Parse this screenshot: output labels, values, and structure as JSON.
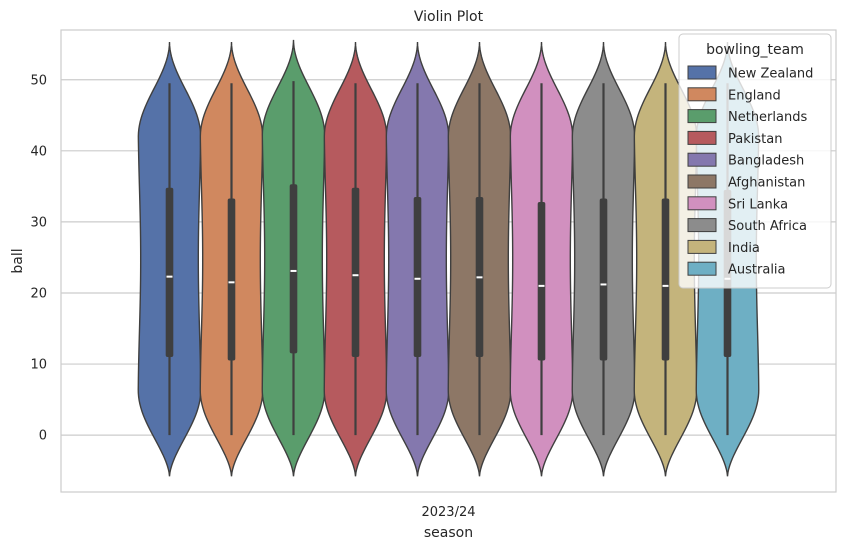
{
  "chart_data": {
    "type": "violin",
    "title": "Violin Plot",
    "xlabel": "season",
    "ylabel": "ball",
    "categories": [
      "2023/24"
    ],
    "ylim": [
      -8,
      57
    ],
    "yticks": [
      0,
      10,
      20,
      30,
      40,
      50
    ],
    "grid": true,
    "legend": {
      "title": "bowling_team",
      "placement": "top-right"
    },
    "series": [
      {
        "name": "New Zealand",
        "color": "#5572a8",
        "min": 0,
        "max": 49.5,
        "q1": 11,
        "median": 22.3,
        "q3": 34.8,
        "kde_min": -5.8,
        "kde_max": 55.3
      },
      {
        "name": "England",
        "color": "#d0885f",
        "min": 0,
        "max": 49.5,
        "q1": 10.5,
        "median": 21.5,
        "q3": 33.3,
        "kde_min": -5.8,
        "kde_max": 55.3
      },
      {
        "name": "Netherlands",
        "color": "#5a9d6c",
        "min": 0,
        "max": 49.8,
        "q1": 11.5,
        "median": 23.1,
        "q3": 35.3,
        "kde_min": -5.8,
        "kde_max": 55.6
      },
      {
        "name": "Pakistan",
        "color": "#b65a5e",
        "min": 0,
        "max": 49.5,
        "q1": 11,
        "median": 22.5,
        "q3": 34.8,
        "kde_min": -5.8,
        "kde_max": 55.3
      },
      {
        "name": "Bangladesh",
        "color": "#8478ae",
        "min": 0,
        "max": 49.5,
        "q1": 11,
        "median": 22,
        "q3": 33.5,
        "kde_min": -5.8,
        "kde_max": 55.3
      },
      {
        "name": "Afghanistan",
        "color": "#8d7766",
        "min": 0,
        "max": 49.5,
        "q1": 11,
        "median": 22.2,
        "q3": 33.5,
        "kde_min": -5.8,
        "kde_max": 55.3
      },
      {
        "name": "Sri Lanka",
        "color": "#d190bf",
        "min": 0,
        "max": 49.5,
        "q1": 10.5,
        "median": 21,
        "q3": 32.8,
        "kde_min": -5.8,
        "kde_max": 55.3
      },
      {
        "name": "South Africa",
        "color": "#8c8c8c",
        "min": 0,
        "max": 49.5,
        "q1": 10.5,
        "median": 21.2,
        "q3": 33.3,
        "kde_min": -5.8,
        "kde_max": 55.3
      },
      {
        "name": "India",
        "color": "#c4b47c",
        "min": 0,
        "max": 49.5,
        "q1": 10.5,
        "median": 21,
        "q3": 33.3,
        "kde_min": -5.8,
        "kde_max": 55.3
      },
      {
        "name": "Australia",
        "color": "#6eafc4",
        "min": 0,
        "max": 49.5,
        "q1": 11,
        "median": 22,
        "q3": 34.5,
        "kde_min": -5.8,
        "kde_max": 55.3
      }
    ]
  }
}
